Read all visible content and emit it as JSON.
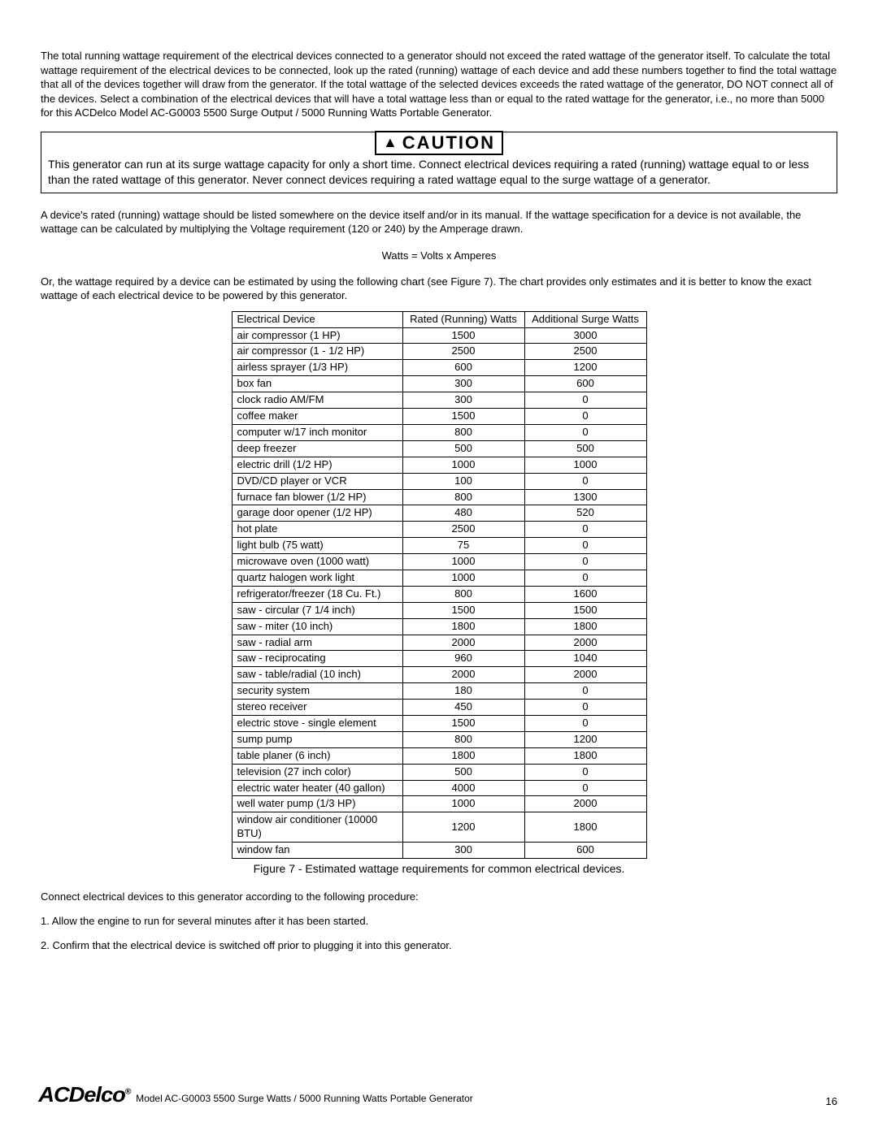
{
  "intro_para": "The total running wattage requirement of the electrical devices connected to a generator should not exceed the rated wattage of the generator itself. To calculate the total wattage requirement of the electrical devices to be connected, look up the rated (running) wattage of each device and add these numbers together to find the total wattage that all of the devices together will draw from the generator. If the total wattage of the selected devices exceeds the rated wattage of the generator, DO NOT connect all of the devices. Select a combination of the electrical devices that will have a total wattage less than or equal to the rated wattage for the generator, i.e., no more than 5000 for this ACDelco Model AC-G0003 5500 Surge Output / 5000 Running Watts Portable Generator.",
  "caution": {
    "label": "CAUTION",
    "text": "This generator can run at its surge wattage capacity for only a short time. Connect electrical devices requiring a rated (running) wattage equal to or less than the rated wattage of this generator. Never connect devices requiring a rated wattage equal to the surge wattage of a generator."
  },
  "device_wattage_para": "A device's rated (running) wattage should be listed somewhere on the device itself and/or in its manual. If the wattage specification for a device is not available, the wattage can be calculated by multiplying the Voltage requirement (120 or 240) by the Amperage drawn.",
  "formula": "Watts = Volts x Amperes",
  "chart_intro": "Or, the wattage required by a device can be estimated by using the following chart (see Figure 7). The chart provides only estimates and it is better to know the exact wattage of each electrical device to be powered by this generator.",
  "table": {
    "headers": [
      "Electrical Device",
      "Rated (Running) Watts",
      "Additional Surge Watts"
    ],
    "rows": [
      [
        "air compressor (1 HP)",
        "1500",
        "3000"
      ],
      [
        "air compressor (1 - 1/2 HP)",
        "2500",
        "2500"
      ],
      [
        "airless sprayer (1/3 HP)",
        "600",
        "1200"
      ],
      [
        "box fan",
        "300",
        "600"
      ],
      [
        "clock radio AM/FM",
        "300",
        "0"
      ],
      [
        "coffee maker",
        "1500",
        "0"
      ],
      [
        "computer w/17 inch monitor",
        "800",
        "0"
      ],
      [
        "deep freezer",
        "500",
        "500"
      ],
      [
        "electric drill (1/2 HP)",
        "1000",
        "1000"
      ],
      [
        "DVD/CD player or VCR",
        "100",
        "0"
      ],
      [
        "furnace fan blower (1/2 HP)",
        "800",
        "1300"
      ],
      [
        "garage door opener (1/2 HP)",
        "480",
        "520"
      ],
      [
        "hot plate",
        "2500",
        "0"
      ],
      [
        "light bulb (75 watt)",
        "75",
        "0"
      ],
      [
        "microwave oven (1000 watt)",
        "1000",
        "0"
      ],
      [
        "quartz halogen work light",
        "1000",
        "0"
      ],
      [
        "refrigerator/freezer (18 Cu. Ft.)",
        "800",
        "1600"
      ],
      [
        "saw - circular (7 1/4 inch)",
        "1500",
        "1500"
      ],
      [
        "saw - miter (10 inch)",
        "1800",
        "1800"
      ],
      [
        "saw - radial arm",
        "2000",
        "2000"
      ],
      [
        "saw - reciprocating",
        "960",
        "1040"
      ],
      [
        "saw - table/radial (10 inch)",
        "2000",
        "2000"
      ],
      [
        "security system",
        "180",
        "0"
      ],
      [
        "stereo receiver",
        "450",
        "0"
      ],
      [
        "electric stove - single element",
        "1500",
        "0"
      ],
      [
        "sump pump",
        "800",
        "1200"
      ],
      [
        "table planer (6 inch)",
        "1800",
        "1800"
      ],
      [
        "television (27 inch color)",
        "500",
        "0"
      ],
      [
        "electric water heater (40 gallon)",
        "4000",
        "0"
      ],
      [
        "well water pump (1/3 HP)",
        "1000",
        "2000"
      ],
      [
        "window air conditioner (10000 BTU)",
        "1200",
        "1800"
      ],
      [
        "window fan",
        "300",
        "600"
      ]
    ]
  },
  "figure_caption": "Figure 7 - Estimated wattage requirements for common electrical devices.",
  "procedure_intro": "Connect electrical devices to this generator according to the following procedure:",
  "procedure_steps": [
    "1. Allow the engine to run for several minutes after it has been started.",
    "2. Confirm that the electrical device is switched off prior to plugging it into this generator."
  ],
  "footer": {
    "brand": "ACDelco",
    "model_text": " Model AC-G0003 5500 Surge Watts / 5000 Running Watts Portable Generator",
    "page_number": "16"
  }
}
